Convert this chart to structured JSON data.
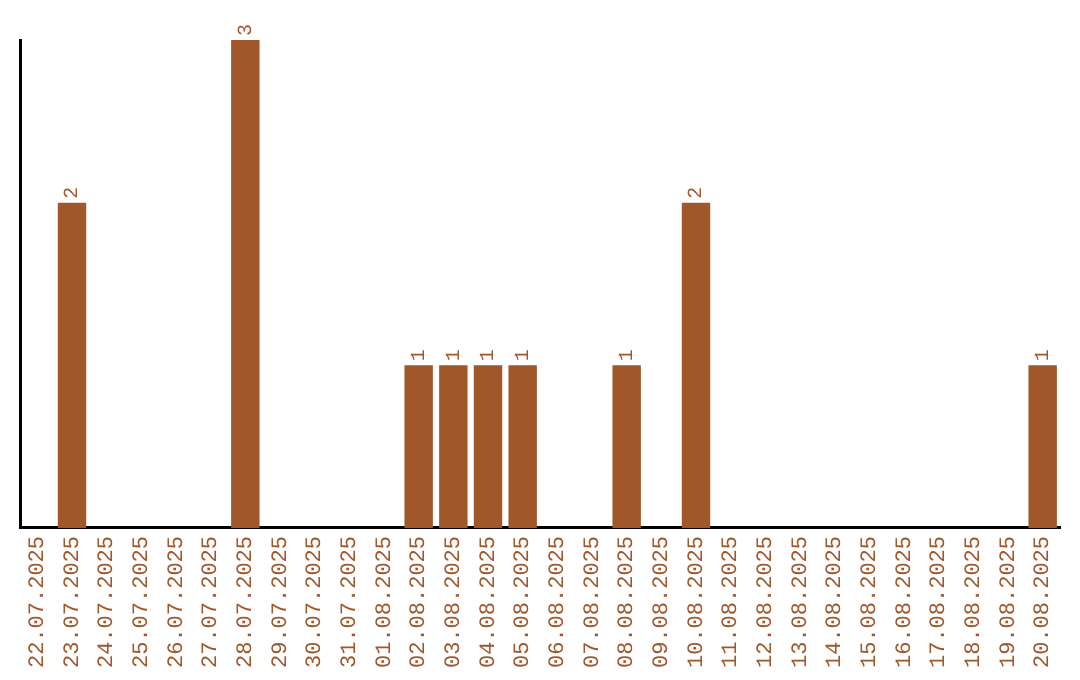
{
  "chart_data": {
    "type": "bar",
    "categories": [
      "22.07.2025",
      "23.07.2025",
      "24.07.2025",
      "25.07.2025",
      "26.07.2025",
      "27.07.2025",
      "28.07.2025",
      "29.07.2025",
      "30.07.2025",
      "31.07.2025",
      "01.08.2025",
      "02.08.2025",
      "03.08.2025",
      "04.08.2025",
      "05.08.2025",
      "06.08.2025",
      "07.08.2025",
      "08.08.2025",
      "09.08.2025",
      "10.08.2025",
      "11.08.2025",
      "12.08.2025",
      "13.08.2025",
      "14.08.2025",
      "15.08.2025",
      "16.08.2025",
      "17.08.2025",
      "18.08.2025",
      "19.08.2025",
      "20.08.2025"
    ],
    "values": [
      0,
      2,
      0,
      0,
      0,
      0,
      3,
      0,
      0,
      0,
      0,
      1,
      1,
      1,
      1,
      0,
      0,
      1,
      0,
      2,
      0,
      0,
      0,
      0,
      0,
      0,
      0,
      0,
      0,
      1
    ],
    "value_labels": [
      null,
      "2",
      null,
      null,
      null,
      null,
      "3",
      null,
      null,
      null,
      null,
      "1",
      "1",
      "1",
      "1",
      null,
      null,
      "1",
      null,
      "2",
      null,
      null,
      null,
      null,
      null,
      null,
      null,
      null,
      null,
      "1"
    ],
    "color": "#a0572a",
    "ylim": [
      0,
      3
    ],
    "grid": false,
    "legend": false,
    "tick_labels": "x"
  }
}
